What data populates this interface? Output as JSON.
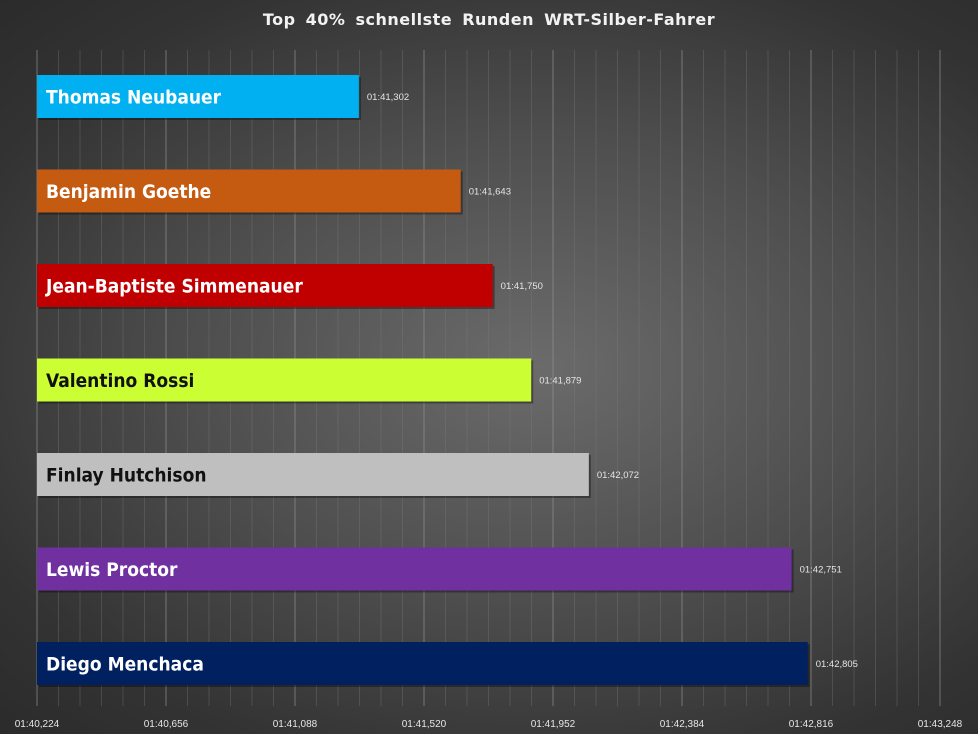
{
  "chart_data": {
    "type": "bar",
    "orientation": "horizontal",
    "title": "Top 40% schnellste Runden WRT-Silber-Fahrer",
    "xlabel": "",
    "ylabel": "",
    "x_ticks": [
      {
        "label": "01:40,224",
        "value": 100.224
      },
      {
        "label": "01:40,656",
        "value": 100.656
      },
      {
        "label": "01:41,088",
        "value": 101.088
      },
      {
        "label": "01:41,520",
        "value": 101.52
      },
      {
        "label": "01:41,952",
        "value": 101.952
      },
      {
        "label": "01:42,384",
        "value": 102.384
      },
      {
        "label": "01:42,816",
        "value": 102.816
      },
      {
        "label": "01:43,248",
        "value": 103.248
      }
    ],
    "xlim": [
      100.224,
      103.248
    ],
    "grid": "vertical",
    "bars": [
      {
        "name": "Thomas Neubauer",
        "value": 101.302,
        "label": "01:41,302",
        "color": "#00b0f0",
        "text_color": "#ffffff"
      },
      {
        "name": "Benjamin Goethe",
        "value": 101.643,
        "label": "01:41,643",
        "color": "#c55a11",
        "text_color": "#ffffff"
      },
      {
        "name": "Jean-Baptiste Simmenauer",
        "value": 101.75,
        "label": "01:41,750",
        "color": "#c00000",
        "text_color": "#ffffff"
      },
      {
        "name": "Valentino Rossi",
        "value": 101.879,
        "label": "01:41,879",
        "color": "#ccff33",
        "text_color": "#111111"
      },
      {
        "name": "Finlay Hutchison",
        "value": 102.072,
        "label": "01:42,072",
        "color": "#bfbfbf",
        "text_color": "#111111"
      },
      {
        "name": "Lewis Proctor",
        "value": 102.751,
        "label": "01:42,751",
        "color": "#7030a0",
        "text_color": "#ffffff"
      },
      {
        "name": "Diego Menchaca",
        "value": 102.805,
        "label": "01:42,805",
        "color": "#002060",
        "text_color": "#ffffff"
      }
    ]
  }
}
